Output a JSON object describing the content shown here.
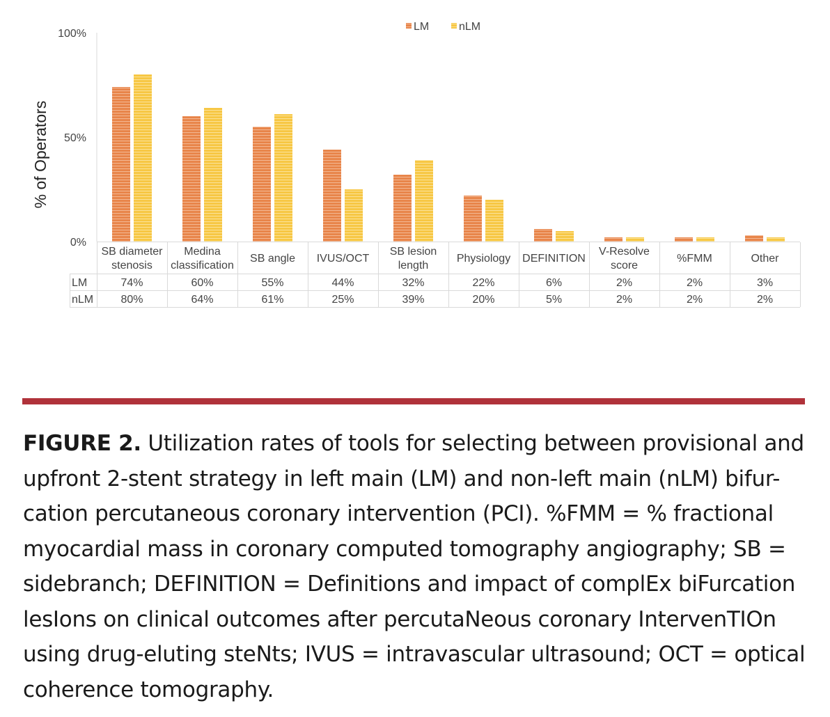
{
  "chart_data": {
    "type": "bar",
    "ylabel": "% of Operators",
    "ylim": [
      0,
      100
    ],
    "yticks": [
      "0%",
      "50%",
      "100%"
    ],
    "legend_position": "top",
    "categories": [
      [
        "SB diameter",
        "stenosis"
      ],
      [
        "Medina",
        "classification"
      ],
      [
        "SB angle"
      ],
      [
        "IVUS/OCT"
      ],
      [
        "SB lesion",
        "length"
      ],
      [
        "Physiology"
      ],
      [
        "DEFINITION"
      ],
      [
        "V-Resolve",
        "score"
      ],
      [
        "%FMM"
      ],
      [
        "Other"
      ]
    ],
    "series": [
      {
        "name": "LM",
        "color": "#e8854a",
        "values": [
          74,
          60,
          55,
          44,
          32,
          22,
          6,
          2,
          2,
          3
        ],
        "labels": [
          "74%",
          "60%",
          "55%",
          "44%",
          "32%",
          "22%",
          "6%",
          "2%",
          "2%",
          "3%"
        ]
      },
      {
        "name": "nLM",
        "color": "#f7c744",
        "values": [
          80,
          64,
          61,
          25,
          39,
          20,
          5,
          2,
          2,
          2
        ],
        "labels": [
          "80%",
          "64%",
          "61%",
          "25%",
          "39%",
          "20%",
          "5%",
          "2%",
          "2%",
          "2%"
        ]
      }
    ],
    "grid": false,
    "data_table": true
  },
  "caption": {
    "figure_label": "FIGURE 2.",
    "lines": [
      " Utilization rates of tools for selecting between provisional and",
      "upfront 2-stent strategy in left main (LM) and non-left main (nLM) bifur-",
      "cation percutaneous coronary intervention (PCI). %FMM = % fractional",
      "myocardial mass in coronary computed tomography angiography; SB =",
      "sidebranch; DEFINITION = Definitions and impact of complEx biFurcation",
      "lesIons on clinical outcomes after percutaNeous coronary IntervenTIOn",
      "using drug-eluting steNts; IVUS = intravascular ultrasound; OCT = optical",
      "coherence tomography."
    ]
  },
  "rule_color": "#b0323a"
}
